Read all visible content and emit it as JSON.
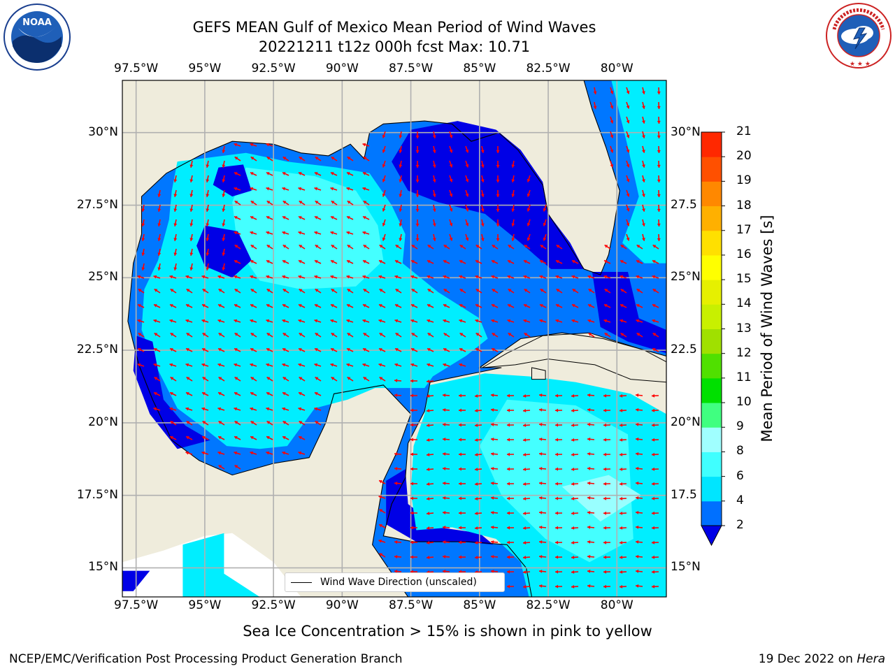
{
  "title_line1": "GEFS MEAN Gulf of Mexico Mean Period of Wind Waves",
  "title_line2": "20221211 t12z 000h fcst   Max: 10.71",
  "noaa_logo": {
    "center_text": "NOAA",
    "ring_text": "NATIONAL OCEANIC AND ATMOSPHERIC ADMINISTRATION · U.S. DEPARTMENT OF COMMERCE"
  },
  "nws_logo": {
    "ring_text": "NATIONAL WEATHER SERVICE"
  },
  "map": {
    "lon_ticks": [
      "97.5°W",
      "95°W",
      "92.5°W",
      "90°W",
      "87.5°W",
      "85°W",
      "82.5°W",
      "80°W"
    ],
    "lat_ticks_left": [
      "30°N",
      "27.5°N",
      "25°N",
      "22.5°N",
      "20°N",
      "17.5°N",
      "15°N"
    ],
    "lat_ticks_right": [
      "30°N",
      "27.5",
      "25°N",
      "22.5",
      "20°N",
      "17.5",
      "15°N"
    ],
    "lon_range": [
      -98,
      -78.2
    ],
    "lat_range": [
      14.0,
      31.8
    ],
    "colors": {
      "land": "#efecdc",
      "ocean_low": "#0000e6",
      "band_2_4": "#0077ff",
      "band_4_6": "#00eeff",
      "band_6_8": "#44ffff",
      "band_8_9": "#99ffff",
      "arrow": "#ff0000",
      "grid": "#b0b0b0"
    },
    "legend_label": "Wind Wave Direction (unscaled)"
  },
  "colorbar": {
    "title": "Mean Period of Wind Waves [s]",
    "labels": [
      "2",
      "4",
      "6",
      "8",
      "9",
      "10",
      "11",
      "12",
      "13",
      "14",
      "15",
      "16",
      "17",
      "18",
      "19",
      "20",
      "21"
    ],
    "colors": [
      "#0070ff",
      "#00e5ff",
      "#40ffff",
      "#a0ffff",
      "#40ff80",
      "#00e000",
      "#50e000",
      "#a0e000",
      "#c8f000",
      "#e6f000",
      "#ffff00",
      "#ffe000",
      "#ffb000",
      "#ff8800",
      "#ff5000",
      "#ff2800"
    ],
    "extend_low_color": "#0000e6"
  },
  "footnote": "Sea Ice Concentration > 15% is shown in pink to yellow",
  "credit_left": "NCEP/EMC/Verification Post Processing Product Generation Branch",
  "credit_right_text": "19 Dec 2022 on ",
  "credit_right_machine": "Hera"
}
